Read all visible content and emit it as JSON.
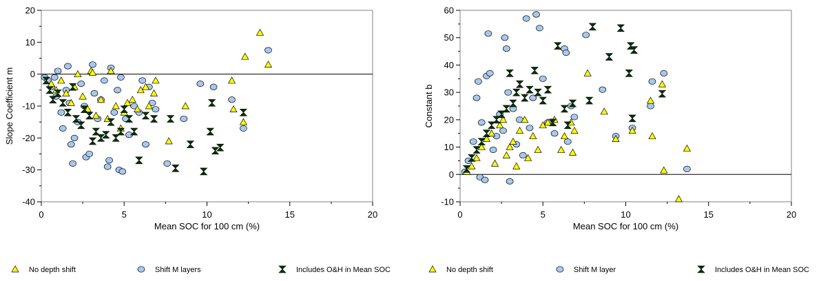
{
  "chart_data": [
    {
      "type": "scatter",
      "xlabel": "Mean SOC for 100 cm (%)",
      "ylabel": "Slope Coefficient m",
      "xlim": [
        0,
        20
      ],
      "ylim": [
        -40,
        20
      ],
      "xticks": [
        0,
        5,
        10,
        15,
        20
      ],
      "yticks": [
        -40,
        -30,
        -20,
        -10,
        0,
        10,
        20
      ],
      "grid": false,
      "legend_position": "bottom",
      "series": [
        {
          "name": "No depth shift",
          "marker": "triangle",
          "color": "#ffff00",
          "points": [
            [
              0.6,
              -3
            ],
            [
              0.9,
              -5
            ],
            [
              1.2,
              -2
            ],
            [
              1.5,
              -6
            ],
            [
              1.8,
              -9
            ],
            [
              2.0,
              -4
            ],
            [
              2.2,
              0
            ],
            [
              2.5,
              -7
            ],
            [
              2.8,
              -11
            ],
            [
              3.0,
              1
            ],
            [
              3.1,
              0.5
            ],
            [
              3.3,
              -13
            ],
            [
              3.6,
              -8
            ],
            [
              4.0,
              -14
            ],
            [
              4.2,
              1
            ],
            [
              4.5,
              -10
            ],
            [
              4.8,
              -17
            ],
            [
              5.0,
              -12
            ],
            [
              5.2,
              -9
            ],
            [
              5.5,
              -8
            ],
            [
              5.8,
              -11
            ],
            [
              6.0,
              -5
            ],
            [
              6.3,
              -4
            ],
            [
              6.5,
              -10
            ],
            [
              6.8,
              -6
            ],
            [
              6.9,
              -2
            ],
            [
              7.7,
              -21
            ],
            [
              8.7,
              -10
            ],
            [
              11.5,
              -2
            ],
            [
              11.6,
              -11
            ],
            [
              12.2,
              -15
            ],
            [
              12.3,
              5.5
            ],
            [
              13.2,
              13
            ],
            [
              13.7,
              3
            ]
          ]
        },
        {
          "name": "Shift M layers",
          "marker": "circle",
          "color": "#a8c8ee",
          "points": [
            [
              0.2,
              -1
            ],
            [
              0.4,
              -2
            ],
            [
              0.6,
              -4
            ],
            [
              0.8,
              -1
            ],
            [
              0.9,
              -7
            ],
            [
              1.0,
              1
            ],
            [
              1.2,
              -12
            ],
            [
              1.3,
              -17
            ],
            [
              1.5,
              -5
            ],
            [
              1.6,
              2.5
            ],
            [
              1.7,
              -9
            ],
            [
              1.8,
              -22
            ],
            [
              1.9,
              -28
            ],
            [
              2.0,
              -20
            ],
            [
              2.2,
              -15
            ],
            [
              2.4,
              -3
            ],
            [
              2.6,
              -10
            ],
            [
              2.7,
              -26
            ],
            [
              2.9,
              -25
            ],
            [
              3.1,
              3
            ],
            [
              3.2,
              -6
            ],
            [
              3.4,
              -14
            ],
            [
              3.6,
              -8
            ],
            [
              3.8,
              -2
            ],
            [
              4.0,
              -29
            ],
            [
              4.1,
              -27
            ],
            [
              4.2,
              2
            ],
            [
              4.4,
              -12
            ],
            [
              4.6,
              -5
            ],
            [
              4.7,
              -30
            ],
            [
              4.8,
              -1
            ],
            [
              4.9,
              -30.5
            ],
            [
              5.1,
              -14
            ],
            [
              5.3,
              -19
            ],
            [
              5.6,
              -10
            ],
            [
              5.9,
              -12
            ],
            [
              6.1,
              -2
            ],
            [
              6.3,
              -22
            ],
            [
              6.5,
              -4
            ],
            [
              6.7,
              -9
            ],
            [
              6.9,
              -11
            ],
            [
              7.6,
              -28
            ],
            [
              8.6,
              -14
            ],
            [
              9.6,
              -3
            ],
            [
              10.4,
              -4
            ],
            [
              11.5,
              -8
            ],
            [
              12.2,
              -17
            ],
            [
              13.7,
              7.5
            ]
          ]
        },
        {
          "name": "Includes O&H in Mean SOC",
          "marker": "bowtie",
          "color": "#003300",
          "points": [
            [
              0.3,
              -2
            ],
            [
              0.5,
              -5
            ],
            [
              0.7,
              -8
            ],
            [
              1.0,
              -6
            ],
            [
              1.3,
              -9
            ],
            [
              1.6,
              -12
            ],
            [
              1.9,
              -4
            ],
            [
              2.1,
              -14
            ],
            [
              2.4,
              -16
            ],
            [
              2.6,
              -11
            ],
            [
              2.9,
              -13
            ],
            [
              3.1,
              -21
            ],
            [
              3.3,
              -18
            ],
            [
              3.6,
              -20
            ],
            [
              3.9,
              -19
            ],
            [
              4.2,
              -15
            ],
            [
              4.5,
              -20
            ],
            [
              4.8,
              -18
            ],
            [
              5.0,
              -11
            ],
            [
              5.3,
              -14
            ],
            [
              5.6,
              -18
            ],
            [
              5.9,
              -27
            ],
            [
              6.3,
              -13
            ],
            [
              6.8,
              -14
            ],
            [
              7.8,
              -14
            ],
            [
              8.1,
              -29.5
            ],
            [
              9.0,
              -22
            ],
            [
              9.8,
              -30.5
            ],
            [
              10.2,
              -18
            ],
            [
              10.3,
              -9
            ],
            [
              10.5,
              -24
            ],
            [
              10.8,
              -23
            ],
            [
              12.2,
              -12
            ]
          ]
        }
      ]
    },
    {
      "type": "scatter",
      "xlabel": "Mean SOC for 100 cm (%)",
      "ylabel": "Constant b",
      "xlim": [
        0,
        20
      ],
      "ylim": [
        -10,
        60
      ],
      "xticks": [
        0,
        5,
        10,
        15,
        20
      ],
      "yticks": [
        -10,
        0,
        10,
        20,
        30,
        40,
        50,
        60
      ],
      "grid": false,
      "legend_position": "bottom",
      "series": [
        {
          "name": "No depth shift",
          "marker": "triangle",
          "color": "#ffff00",
          "points": [
            [
              0.4,
              1
            ],
            [
              0.7,
              3
            ],
            [
              1.0,
              6
            ],
            [
              1.3,
              10
            ],
            [
              1.6,
              13
            ],
            [
              1.9,
              15
            ],
            [
              2.1,
              4
            ],
            [
              2.4,
              18
            ],
            [
              2.6,
              20
            ],
            [
              2.8,
              7
            ],
            [
              3.0,
              10
            ],
            [
              3.2,
              12
            ],
            [
              3.4,
              3
            ],
            [
              3.6,
              16
            ],
            [
              3.9,
              20
            ],
            [
              4.1,
              6
            ],
            [
              4.4,
              14
            ],
            [
              4.7,
              9
            ],
            [
              5.0,
              18
            ],
            [
              5.3,
              19
            ],
            [
              5.7,
              20
            ],
            [
              6.1,
              9
            ],
            [
              6.3,
              14
            ],
            [
              6.7,
              19
            ],
            [
              6.8,
              8
            ],
            [
              6.9,
              16
            ],
            [
              7.7,
              37
            ],
            [
              8.7,
              23
            ],
            [
              9.4,
              13
            ],
            [
              10.4,
              16
            ],
            [
              11.5,
              27
            ],
            [
              11.6,
              14
            ],
            [
              12.2,
              33
            ],
            [
              12.3,
              1.5
            ],
            [
              13.2,
              -9
            ],
            [
              13.7,
              9.5
            ]
          ]
        },
        {
          "name": "Shift M layer",
          "marker": "circle",
          "color": "#a8c8ee",
          "points": [
            [
              0.3,
              1
            ],
            [
              0.5,
              5
            ],
            [
              0.8,
              12
            ],
            [
              1.0,
              28
            ],
            [
              1.1,
              34
            ],
            [
              1.2,
              -1
            ],
            [
              1.3,
              19
            ],
            [
              1.5,
              -2
            ],
            [
              1.6,
              36
            ],
            [
              1.7,
              51.5
            ],
            [
              1.8,
              37
            ],
            [
              2.0,
              9
            ],
            [
              2.2,
              14
            ],
            [
              2.4,
              22
            ],
            [
              2.6,
              16
            ],
            [
              2.7,
              50
            ],
            [
              2.8,
              46
            ],
            [
              2.9,
              30
            ],
            [
              3.0,
              -2.5
            ],
            [
              3.2,
              24
            ],
            [
              3.4,
              11
            ],
            [
              3.6,
              20
            ],
            [
              3.8,
              7
            ],
            [
              4.0,
              57
            ],
            [
              4.2,
              17
            ],
            [
              4.4,
              28
            ],
            [
              4.6,
              58.5
            ],
            [
              4.8,
              53.5
            ],
            [
              5.0,
              35
            ],
            [
              5.3,
              19
            ],
            [
              5.7,
              15
            ],
            [
              6.3,
              46
            ],
            [
              6.4,
              44.5
            ],
            [
              6.5,
              12
            ],
            [
              6.7,
              25
            ],
            [
              6.9,
              21
            ],
            [
              7.6,
              51
            ],
            [
              8.6,
              31
            ],
            [
              9.4,
              14
            ],
            [
              10.4,
              17
            ],
            [
              11.5,
              25
            ],
            [
              11.6,
              34
            ],
            [
              12.3,
              37
            ],
            [
              13.7,
              2
            ]
          ]
        },
        {
          "name": "Includes O&H in Mean SOC",
          "marker": "bowtie",
          "color": "#003300",
          "points": [
            [
              0.4,
              2
            ],
            [
              0.7,
              6
            ],
            [
              1.0,
              9
            ],
            [
              1.3,
              12
            ],
            [
              1.6,
              15
            ],
            [
              1.9,
              18
            ],
            [
              2.2,
              20
            ],
            [
              2.5,
              22
            ],
            [
              2.8,
              24
            ],
            [
              3.0,
              37
            ],
            [
              3.2,
              26
            ],
            [
              3.4,
              30
            ],
            [
              3.6,
              33
            ],
            [
              3.9,
              28
            ],
            [
              4.2,
              31
            ],
            [
              4.5,
              38
            ],
            [
              4.7,
              30
            ],
            [
              5.0,
              27
            ],
            [
              5.3,
              31
            ],
            [
              5.6,
              19
            ],
            [
              5.9,
              47
            ],
            [
              6.3,
              24
            ],
            [
              6.5,
              18
            ],
            [
              6.8,
              26
            ],
            [
              7.8,
              27
            ],
            [
              8.0,
              54
            ],
            [
              9.0,
              43
            ],
            [
              9.7,
              53.5
            ],
            [
              10.2,
              37
            ],
            [
              10.3,
              47
            ],
            [
              10.5,
              45.5
            ],
            [
              10.4,
              20.5
            ],
            [
              12.2,
              29.5
            ]
          ]
        }
      ]
    }
  ]
}
